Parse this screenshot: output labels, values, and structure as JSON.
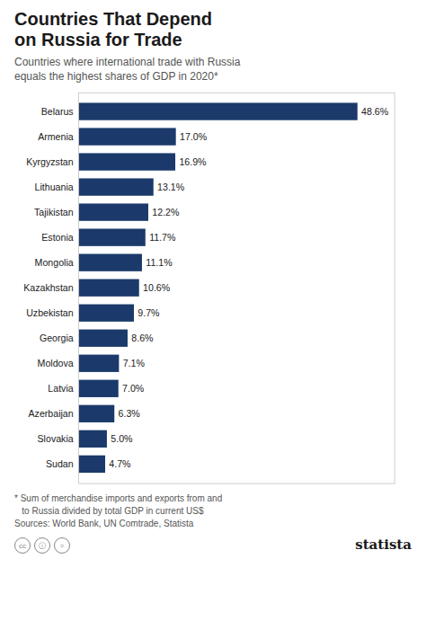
{
  "chart_data": {
    "type": "bar",
    "orientation": "horizontal",
    "title": "Countries That Depend\non Russia for Trade",
    "subtitle": "Countries where international trade with Russia\nequals the highest shares of GDP in 2020*",
    "annotations": [
      "* Sum of merchandise imports and exports from and\n   to Russia divided by total GDP in current US$\nSources: World Bank, UN Comtrade, Statista",
      "statista",
      "cc",
      "ⓘ",
      "="
    ],
    "categories": [
      "Belarus",
      "Armenia",
      "Kyrgyzstan",
      "Lithuania",
      "Tajikistan",
      "Estonia",
      "Mongolia",
      "Kazakhstan",
      "Uzbekistan",
      "Georgia",
      "Moldova",
      "Latvia",
      "Azerbaijan",
      "Slovakia",
      "Sudan"
    ],
    "values": [
      48.6,
      17.0,
      16.9,
      13.1,
      12.2,
      11.7,
      11.1,
      10.6,
      9.7,
      8.6,
      7.1,
      7.0,
      6.3,
      5.0,
      4.7
    ],
    "value_labels": [
      "48.6%",
      "17.0%",
      "16.9%",
      "13.1%",
      "12.2%",
      "11.7%",
      "11.1%",
      "10.6%",
      "9.7%",
      "8.6%",
      "7.1%",
      "7.0%",
      "6.3%",
      "5.0%",
      "4.7%"
    ],
    "data_labels": true,
    "color": "#1b3a6b",
    "xlim": [
      0,
      55
    ],
    "tick_labels": "y",
    "grid": false
  }
}
